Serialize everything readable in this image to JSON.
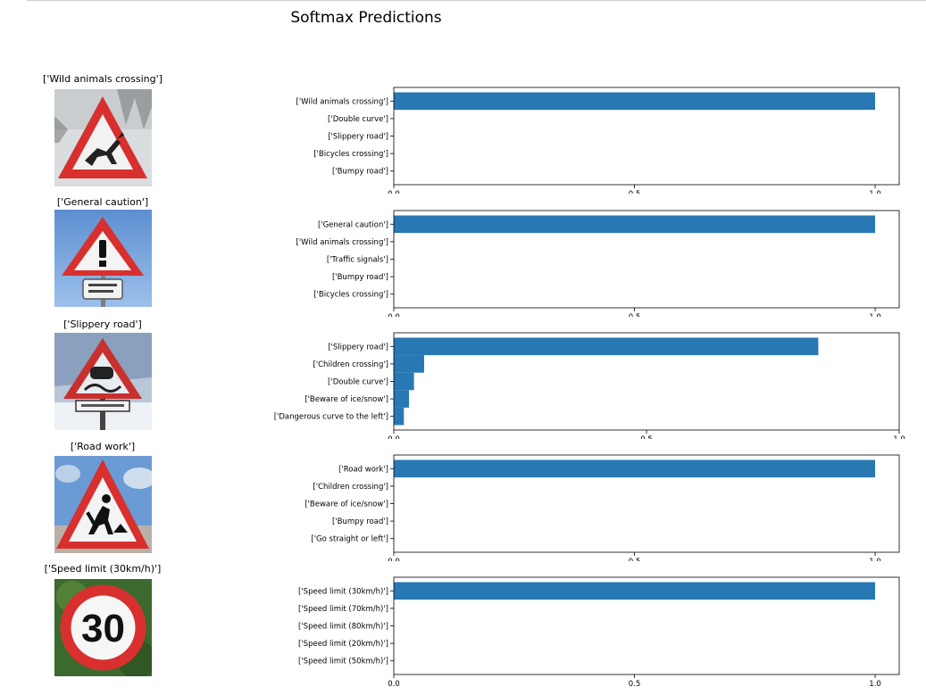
{
  "suptitle": "Softmax Predictions",
  "bar_color": "#2878b4",
  "signs": [
    {
      "title": "['Wild animals crossing']",
      "icon": "wild-animals-crossing-sign"
    },
    {
      "title": "['General caution']",
      "icon": "general-caution-sign"
    },
    {
      "title": "['Slippery road']",
      "icon": "slippery-road-sign"
    },
    {
      "title": "['Road work']",
      "icon": "road-work-sign"
    },
    {
      "title": "['Speed limit (30km/h)']",
      "icon": "speed-limit-30-sign",
      "sign_text": "30"
    }
  ],
  "chart_data": [
    {
      "type": "bar",
      "orientation": "horizontal",
      "categories": [
        "['Wild animals crossing']",
        "['Double curve']",
        "['Slippery road']",
        "['Bicycles crossing']",
        "['Bumpy road']"
      ],
      "values": [
        1.0,
        0.0,
        0.0,
        0.0,
        0.0
      ],
      "xlim": [
        0,
        1.05
      ],
      "xticks": [
        "0.0",
        "0.5",
        "1.0"
      ],
      "xtick_values": [
        0,
        0.5,
        1.0
      ]
    },
    {
      "type": "bar",
      "orientation": "horizontal",
      "categories": [
        "['General caution']",
        "['Wild animals crossing']",
        "['Traffic signals']",
        "['Bumpy road']",
        "['Bicycles crossing']"
      ],
      "values": [
        1.0,
        0.0,
        0.0,
        0.0,
        0.0
      ],
      "xlim": [
        0,
        1.05
      ],
      "xticks": [
        "0.0",
        "0.5",
        "1.0"
      ],
      "xtick_values": [
        0,
        0.5,
        1.0
      ]
    },
    {
      "type": "bar",
      "orientation": "horizontal",
      "categories": [
        "['Slippery road']",
        "['Children crossing']",
        "['Double curve']",
        "['Beware of ice/snow']",
        "['Dangerous curve to the left']"
      ],
      "values": [
        0.84,
        0.06,
        0.04,
        0.03,
        0.02
      ],
      "xlim": [
        0,
        1.0
      ],
      "xticks": [
        "0.0",
        "0.5",
        "1.0"
      ],
      "xtick_values": [
        0,
        0.5,
        1.0
      ]
    },
    {
      "type": "bar",
      "orientation": "horizontal",
      "categories": [
        "['Road work']",
        "['Children crossing']",
        "['Beware of ice/snow']",
        "['Bumpy road']",
        "['Go straight or left']"
      ],
      "values": [
        1.0,
        0.0,
        0.0,
        0.0,
        0.0
      ],
      "xlim": [
        0,
        1.05
      ],
      "xticks": [
        "0.0",
        "0.5",
        "1.0"
      ],
      "xtick_values": [
        0,
        0.5,
        1.0
      ]
    },
    {
      "type": "bar",
      "orientation": "horizontal",
      "categories": [
        "['Speed limit (30km/h)']",
        "['Speed limit (70km/h)']",
        "['Speed limit (80km/h)']",
        "['Speed limit (20km/h)']",
        "['Speed limit (50km/h)']"
      ],
      "values": [
        1.0,
        0.0,
        0.0,
        0.0,
        0.0
      ],
      "xlim": [
        0,
        1.05
      ],
      "xticks": [
        "0.0",
        "0.5",
        "1.0"
      ],
      "xtick_values": [
        0,
        0.5,
        1.0
      ]
    }
  ]
}
